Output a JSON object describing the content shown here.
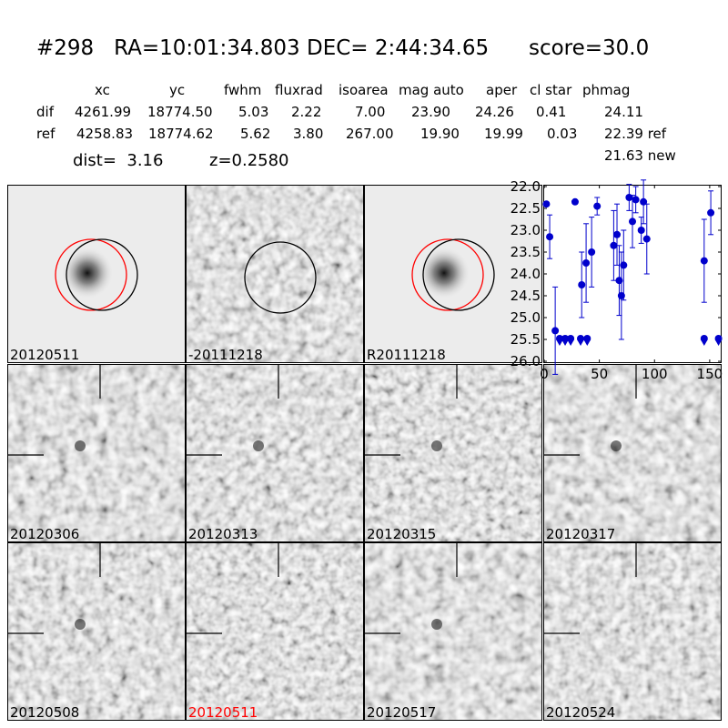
{
  "header": {
    "title": "#298   RA=10:01:34.803 DEC= 2:44:34.65      score=30.0"
  },
  "table": {
    "columns": [
      "xc",
      "yc",
      "fwhm",
      "fluxrad",
      "isoarea",
      "mag auto",
      "aper",
      "cl star",
      "phmag"
    ],
    "rows": [
      {
        "label": "dif",
        "values": [
          "4261.99",
          "18774.50",
          "5.03",
          "2.22",
          "7.00",
          "23.90",
          "24.26",
          "0.41",
          "24.11"
        ]
      },
      {
        "label": "ref",
        "values": [
          "4258.83",
          "18774.62",
          "5.62",
          "3.80",
          "267.00",
          "19.90",
          "19.99",
          "0.03",
          "22.39 ref"
        ]
      }
    ],
    "extra": "21.63 new"
  },
  "info": {
    "dist": "dist=  3.16",
    "z": "z=0.2580"
  },
  "panels": [
    {
      "label": "20120511",
      "style": "smooth",
      "label_color": "#000000"
    },
    {
      "label": "-20111218",
      "style": "noisy",
      "label_color": "#000000"
    },
    {
      "label": "R20111218",
      "style": "smooth",
      "label_color": "#000000"
    },
    {
      "label": "20120306",
      "style": "noisy",
      "label_color": "#000000"
    },
    {
      "label": "20120313",
      "style": "noisy",
      "label_color": "#000000"
    },
    {
      "label": "20120315",
      "style": "noisy",
      "label_color": "#000000"
    },
    {
      "label": "20120317",
      "style": "noisy",
      "label_color": "#000000"
    },
    {
      "label": "20120508",
      "style": "noisy",
      "label_color": "#000000"
    },
    {
      "label": "20120511",
      "style": "noisy",
      "label_color": "#ff0000"
    },
    {
      "label": "20120517",
      "style": "noisy",
      "label_color": "#000000"
    },
    {
      "label": "20120524",
      "style": "noisy",
      "label_color": "#000000"
    }
  ],
  "chart_data": {
    "type": "scatter",
    "xlim": [
      0,
      160
    ],
    "ylim": [
      26.0,
      22.0
    ],
    "y_inverted": true,
    "xticks": [
      0,
      50,
      100,
      150
    ],
    "yticks": [
      22.0,
      22.5,
      23.0,
      23.5,
      24.0,
      24.5,
      25.0,
      25.5,
      26.0
    ],
    "xtick_labels": [
      "0",
      "50",
      "100",
      "150"
    ],
    "ytick_labels": [
      "22.0",
      "22.5",
      "23.0",
      "23.5",
      "24.0",
      "24.5",
      "25.0",
      "25.5",
      "26.0"
    ],
    "color": "#0000cc",
    "points": [
      {
        "x": 2,
        "y": 22.4,
        "err": 0.0
      },
      {
        "x": 5,
        "y": 23.15,
        "err": 0.5
      },
      {
        "x": 10,
        "y": 25.3,
        "err": 1.0
      },
      {
        "x": 28,
        "y": 22.35,
        "err": 0.0
      },
      {
        "x": 34,
        "y": 24.25,
        "err": 0.75
      },
      {
        "x": 38,
        "y": 23.75,
        "err": 0.9
      },
      {
        "x": 43,
        "y": 23.5,
        "err": 0.8
      },
      {
        "x": 48,
        "y": 22.45,
        "err": 0.2
      },
      {
        "x": 63,
        "y": 23.35,
        "err": 0.8
      },
      {
        "x": 66,
        "y": 23.1,
        "err": 0.7
      },
      {
        "x": 68,
        "y": 24.15,
        "err": 0.8
      },
      {
        "x": 70,
        "y": 24.5,
        "err": 1.0
      },
      {
        "x": 72,
        "y": 23.8,
        "err": 0.8
      },
      {
        "x": 77,
        "y": 22.25,
        "err": 0.3
      },
      {
        "x": 80,
        "y": 22.8,
        "err": 0.6
      },
      {
        "x": 83,
        "y": 22.3,
        "err": 0.3
      },
      {
        "x": 88,
        "y": 23.0,
        "err": 0.3
      },
      {
        "x": 90,
        "y": 22.35,
        "err": 0.5
      },
      {
        "x": 93,
        "y": 23.2,
        "err": 0.8
      },
      {
        "x": 145,
        "y": 23.7,
        "err": 0.95
      },
      {
        "x": 151,
        "y": 22.6,
        "err": 0.5
      }
    ],
    "upper_limits": [
      {
        "x": 14,
        "y": 25.5
      },
      {
        "x": 19,
        "y": 25.5
      },
      {
        "x": 24,
        "y": 25.5
      },
      {
        "x": 33,
        "y": 25.5
      },
      {
        "x": 39,
        "y": 25.5
      },
      {
        "x": 145,
        "y": 25.5
      },
      {
        "x": 158,
        "y": 25.5
      }
    ]
  }
}
